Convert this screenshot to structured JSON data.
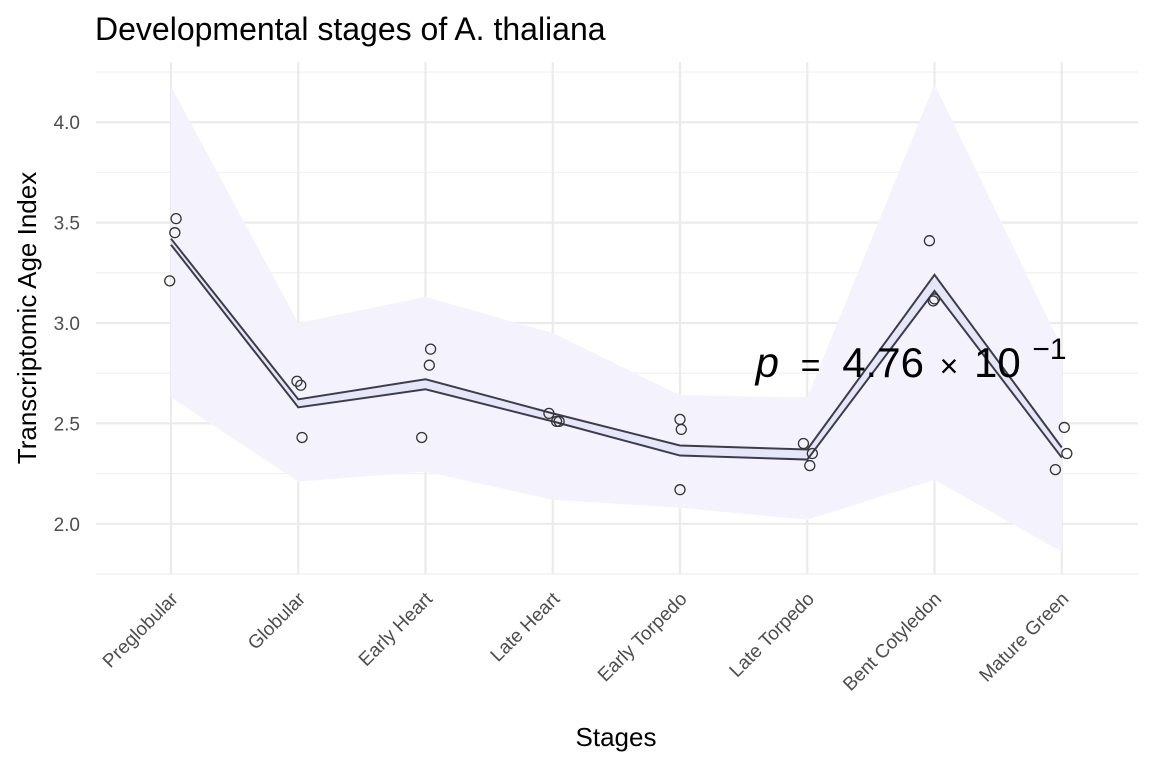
{
  "chart_data": {
    "type": "line",
    "title": "Developmental stages of A. thaliana",
    "xlabel": "Stages",
    "ylabel": "Transcriptomic Age Index",
    "categories": [
      "Preglobular",
      "Globular",
      "Early Heart",
      "Late Heart",
      "Early Torpedo",
      "Late Torpedo",
      "Bent Cotyledon",
      "Mature Green"
    ],
    "ylim": [
      1.75,
      4.3
    ],
    "yticks": [
      2.0,
      2.5,
      3.0,
      3.5,
      4.0
    ],
    "ytick_labels": [
      "2.0",
      "2.5",
      "3.0",
      "3.5",
      "4.0"
    ],
    "grid": true,
    "series": [
      {
        "values": [
          3.42,
          2.62,
          2.72,
          2.55,
          2.39,
          2.37,
          3.24,
          2.38
        ]
      },
      {
        "values": [
          3.39,
          2.58,
          2.67,
          2.51,
          2.34,
          2.32,
          3.16,
          2.33
        ]
      }
    ],
    "band": {
      "upper": [
        4.18,
        3.0,
        3.13,
        2.95,
        2.64,
        2.63,
        4.19,
        2.88
      ],
      "lower": [
        2.63,
        2.21,
        2.26,
        2.12,
        2.08,
        2.02,
        2.22,
        1.86
      ]
    },
    "points": [
      {
        "cat": 0,
        "jitter": -0.01,
        "y": 3.21
      },
      {
        "cat": 0,
        "jitter": 0.03,
        "y": 3.45
      },
      {
        "cat": 0,
        "jitter": 0.04,
        "y": 3.52
      },
      {
        "cat": 1,
        "jitter": -0.01,
        "y": 2.71
      },
      {
        "cat": 1,
        "jitter": 0.02,
        "y": 2.69
      },
      {
        "cat": 1,
        "jitter": 0.03,
        "y": 2.43
      },
      {
        "cat": 2,
        "jitter": -0.03,
        "y": 2.43
      },
      {
        "cat": 2,
        "jitter": 0.03,
        "y": 2.79
      },
      {
        "cat": 2,
        "jitter": 0.04,
        "y": 2.87
      },
      {
        "cat": 3,
        "jitter": -0.03,
        "y": 2.55
      },
      {
        "cat": 3,
        "jitter": 0.03,
        "y": 2.51
      },
      {
        "cat": 3,
        "jitter": 0.05,
        "y": 2.51
      },
      {
        "cat": 4,
        "jitter": 0.0,
        "y": 2.52
      },
      {
        "cat": 4,
        "jitter": 0.01,
        "y": 2.47
      },
      {
        "cat": 4,
        "jitter": 0.0,
        "y": 2.17
      },
      {
        "cat": 5,
        "jitter": -0.03,
        "y": 2.4
      },
      {
        "cat": 5,
        "jitter": 0.02,
        "y": 2.29
      },
      {
        "cat": 5,
        "jitter": 0.04,
        "y": 2.35
      },
      {
        "cat": 6,
        "jitter": -0.04,
        "y": 3.41
      },
      {
        "cat": 6,
        "jitter": -0.01,
        "y": 3.11
      },
      {
        "cat": 6,
        "jitter": 0.0,
        "y": 3.12
      },
      {
        "cat": 7,
        "jitter": -0.05,
        "y": 2.27
      },
      {
        "cat": 7,
        "jitter": 0.02,
        "y": 2.48
      },
      {
        "cat": 7,
        "jitter": 0.04,
        "y": 2.35
      }
    ],
    "annotation": {
      "prefix": "p",
      "equals": "=",
      "mantissa": "4.76",
      "times": "×",
      "base": "10",
      "exponent": "−1",
      "x": 4.5,
      "y": 2.73
    },
    "colors": {
      "band": "#f4f3fd",
      "ribbon": "#e6e6fa",
      "line": "#3d3d4a",
      "point": "#333333"
    }
  }
}
